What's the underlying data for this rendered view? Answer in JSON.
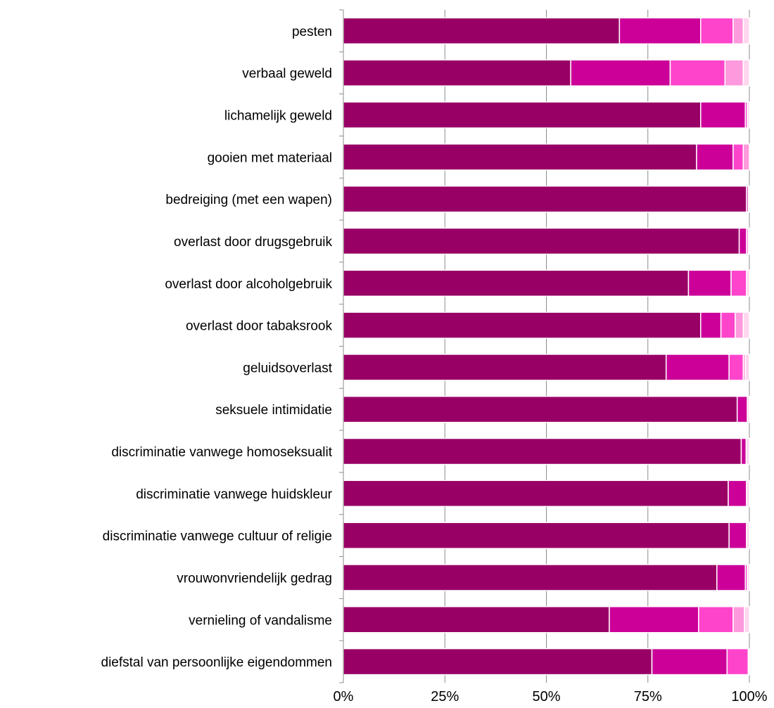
{
  "chart_data": {
    "type": "bar",
    "orientation": "horizontal",
    "stacked": true,
    "percent": true,
    "categories": [
      "pesten",
      "verbaal geweld",
      "lichamelijk geweld",
      "gooien met materiaal",
      "bedreiging (met een wapen)",
      "overlast door drugsgebruik",
      "overlast door alcoholgebruik",
      "overlast door tabaksrook",
      "geluidsoverlast",
      "seksuele intimidatie",
      "discriminatie vanwege homoseksualit",
      "discriminatie vanwege huidskleur",
      "discriminatie vanwege cultuur of religie",
      "vrouwonvriendelijk gedrag",
      "vernieling of vandalisme",
      "diefstal van persoonlijke eigendommen"
    ],
    "series": [
      {
        "color": "#990066",
        "values": [
          68,
          56,
          88,
          87,
          99.3,
          97.5,
          85,
          88,
          79.5,
          97,
          98,
          94.8,
          95,
          92,
          65.5,
          76
        ]
      },
      {
        "color": "#CC0099",
        "values": [
          20,
          24.5,
          11,
          9,
          0.4,
          1.8,
          10.5,
          5,
          15.5,
          2.5,
          1.2,
          4.5,
          4.3,
          7,
          22,
          18.5
        ]
      },
      {
        "color": "#FF44CC",
        "values": [
          8,
          13.5,
          0.5,
          2.5,
          0,
          0.4,
          3.8,
          3.5,
          3.5,
          0,
          0,
          0,
          0,
          0.5,
          8.5,
          5.2
        ]
      },
      {
        "color": "#FF99DD",
        "values": [
          2.5,
          4.5,
          0,
          1.5,
          0,
          0,
          0,
          2,
          0.5,
          0,
          0,
          0,
          0,
          0,
          2.8,
          0
        ]
      },
      {
        "color": "#FFD6EF",
        "values": [
          1.5,
          1.5,
          0.5,
          0,
          0.3,
          0.3,
          0.7,
          1.5,
          1,
          0.5,
          0.8,
          0.7,
          0.7,
          0.5,
          1.2,
          0.3
        ]
      }
    ],
    "xlim": [
      0,
      100
    ],
    "x_ticks": [
      "0%",
      "25%",
      "50%",
      "75%",
      "100%"
    ],
    "title": "",
    "xlabel": "",
    "ylabel": "",
    "grid": true,
    "legend": "none"
  }
}
